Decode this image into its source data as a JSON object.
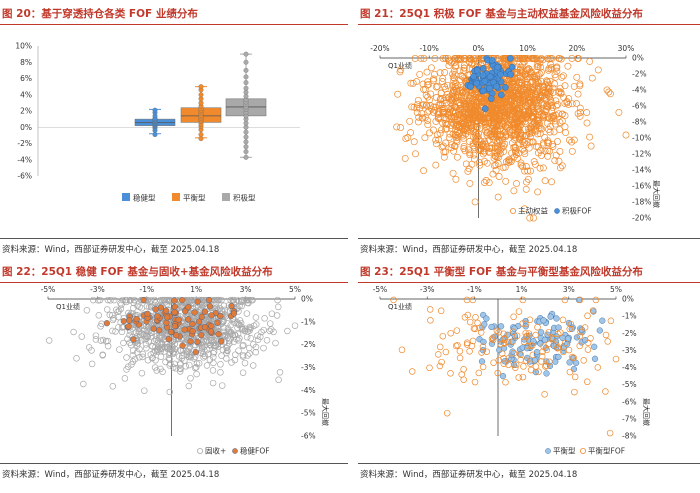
{
  "colors": {
    "title_red": "#c0392b",
    "blue": "#4a90d9",
    "orange": "#f08a2c",
    "grey": "#a9a9a9",
    "darkgrey": "#888888",
    "axis": "#333333"
  },
  "source_text": "资料来源：Wind，西部证券研发中心，截至 2025.04.18",
  "chart_data": [
    {
      "id": "fig20",
      "type": "box",
      "title": "图 20：基于穿透持仓各类 FOF 业绩分布",
      "yticks": [
        "10%",
        "8%",
        "6%",
        "4%",
        "2%",
        "0%",
        "-2%",
        "-4%",
        "-6%"
      ],
      "ylim": [
        -6,
        10
      ],
      "groups": [
        {
          "name": "稳健型",
          "color": "#4a90d9",
          "q1": 0.2,
          "median": 0.6,
          "q3": 1.0,
          "min": -0.8,
          "max": 2.2,
          "points": [
            -0.9,
            -0.4,
            -0.1,
            0.1,
            0.2,
            0.3,
            0.4,
            0.5,
            0.6,
            0.6,
            0.7,
            0.8,
            0.9,
            1.0,
            1.1,
            1.4,
            1.8,
            2.1
          ]
        },
        {
          "name": "平衡型",
          "color": "#f08a2c",
          "q1": 0.6,
          "median": 1.4,
          "q3": 2.4,
          "min": -1.3,
          "max": 5.0,
          "points": [
            -1.4,
            -0.9,
            -0.3,
            0.1,
            0.4,
            0.7,
            0.9,
            1.1,
            1.3,
            1.5,
            1.7,
            1.9,
            2.1,
            2.3,
            2.6,
            3.0,
            3.5,
            4.0,
            4.6,
            5.0
          ]
        },
        {
          "name": "积极型",
          "color": "#a9a9a9",
          "q1": 1.4,
          "median": 2.5,
          "q3": 3.5,
          "min": -3.7,
          "max": 9.0,
          "points": [
            -3.7,
            -3.0,
            -2.4,
            -1.8,
            -1.2,
            -0.6,
            0.0,
            0.5,
            1.0,
            1.4,
            1.8,
            2.2,
            2.5,
            2.8,
            3.1,
            3.4,
            3.8,
            4.3,
            4.8,
            5.5,
            6.2,
            7.0,
            8.0,
            9.0
          ]
        }
      ]
    },
    {
      "id": "fig21",
      "type": "scatter",
      "title": "图 21：25Q1 积极 FOF 基金与主动权益基金风险收益分布",
      "xlabel": "Q1业绩",
      "ylabel": "最大回撤",
      "xticks": [
        "-20%",
        "-10%",
        "0%",
        "10%",
        "20%",
        "30%"
      ],
      "yticks": [
        "0%",
        "-2%",
        "-4%",
        "-6%",
        "-8%",
        "-10%",
        "-12%",
        "-14%",
        "-16%",
        "-18%",
        "-20%"
      ],
      "xlim": [
        -20,
        30
      ],
      "ylim": [
        -20,
        0
      ],
      "series": [
        {
          "name": "主动权益",
          "style": "hollow",
          "color": "#f08a2c",
          "n": 1600,
          "seed": 11,
          "cx": 4,
          "cy": -6,
          "sx": 7,
          "sy": 3.5
        },
        {
          "name": "积极FOF",
          "style": "filled",
          "color": "#4a90d9",
          "n": 70,
          "seed": 7,
          "cx": 2.5,
          "cy": -2.6,
          "sx": 2.2,
          "sy": 1.1
        }
      ]
    },
    {
      "id": "fig22",
      "type": "scatter",
      "title": "图 22：25Q1 稳健 FOF 基金与固收+基金风险收益分布",
      "xlabel": "Q1业绩",
      "ylabel": "最大回撤",
      "xticks": [
        "-5%",
        "-3%",
        "-1%",
        "1%",
        "3%",
        "5%"
      ],
      "yticks": [
        "0%",
        "-1%",
        "-2%",
        "-3%",
        "-4%",
        "-5%",
        "-6%"
      ],
      "xlim": [
        -5,
        5
      ],
      "ylim": [
        -6,
        0
      ],
      "series": [
        {
          "name": "固收+",
          "style": "hollow",
          "color": "#a9a9a9",
          "n": 900,
          "seed": 23,
          "cx": 0.5,
          "cy": -1.3,
          "sx": 1.5,
          "sy": 0.9
        },
        {
          "name": "稳健FOF",
          "style": "filled",
          "color": "#e07b39",
          "n": 90,
          "seed": 5,
          "cx": 0.3,
          "cy": -0.9,
          "sx": 1.0,
          "sy": 0.45
        }
      ]
    },
    {
      "id": "fig23",
      "type": "scatter",
      "title": "图 23：25Q1 平衡型 FOF 基金与平衡型基金风险收益分布",
      "xlabel": "Q1业绩",
      "ylabel": "最大回撤",
      "xticks": [
        "-5%",
        "-3%",
        "-1%",
        "1%",
        "3%",
        "5%"
      ],
      "yticks": [
        "0%",
        "-1%",
        "-2%",
        "-3%",
        "-4%",
        "-5%",
        "-6%",
        "-7%",
        "-8%"
      ],
      "xlim": [
        -5,
        5
      ],
      "ylim": [
        -8,
        0
      ],
      "series": [
        {
          "name": "平衡型",
          "style": "filled",
          "color": "#9fc5e8",
          "n": 120,
          "seed": 31,
          "cx": 1.6,
          "cy": -2.5,
          "sx": 1.4,
          "sy": 0.9
        },
        {
          "name": "平衡型FOF",
          "style": "hollow",
          "color": "#f08a2c",
          "n": 150,
          "seed": 41,
          "cx": 0.6,
          "cy": -2.6,
          "sx": 2.0,
          "sy": 1.4
        }
      ]
    }
  ]
}
